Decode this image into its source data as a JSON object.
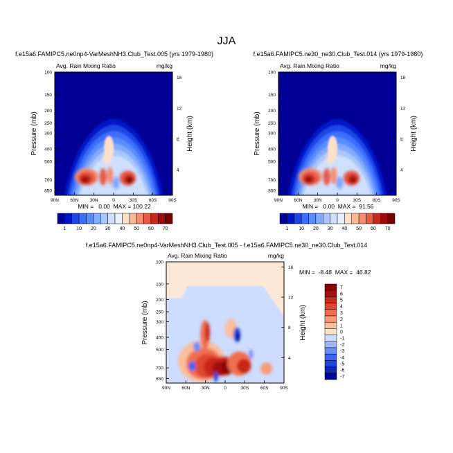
{
  "figure_title": "JJA",
  "colors": {
    "background_field": "#fde8d8",
    "full_scale": [
      "#000096",
      "#0015c8",
      "#1e46e6",
      "#3c6eff",
      "#5a8cff",
      "#82aaff",
      "#aac8ff",
      "#cfe0ff",
      "#e8f0ff",
      "#fde0c8",
      "#fbb896",
      "#f58c6e",
      "#e65a46",
      "#c8281e",
      "#a00a0a",
      "#780000"
    ],
    "diff_scale": [
      "#000096",
      "#0a28b4",
      "#1e46dc",
      "#3c64f0",
      "#6e8cf5",
      "#a0b4fa",
      "#cddcff",
      "#fde0c8",
      "#fbbe9c",
      "#f89b78",
      "#f06e50",
      "#e0462d",
      "#c82814",
      "#a50f0a",
      "#8c0000"
    ]
  },
  "chart_data": [
    {
      "type": "heatmap",
      "panel": "top-left",
      "title": "f.e15a6.FAMIPC5.ne0np4-VarMeshNH3.Club_Test.005 (yrs 1979-1980)",
      "variable": "Avg. Rain Mixing Ratio",
      "units": "mg/kg",
      "ylabel": "Pressure (mb)",
      "ylabel_right": "Height (km)",
      "x_ticks": [
        "90N",
        "60N",
        "30N",
        "0",
        "30S",
        "60S",
        "90S"
      ],
      "y_ticks": [
        "100",
        "150",
        "200",
        "250",
        "300",
        "400",
        "500",
        "700",
        "850"
      ],
      "y_ticks_right": [
        "16",
        "12",
        "8",
        "4"
      ],
      "stats": "MIN =   0.00  MAX = 100.22",
      "min": 0.0,
      "max": 100.22,
      "colorbar_labels": [
        "1",
        "10",
        "20",
        "30",
        "40",
        "50",
        "60",
        "70"
      ]
    },
    {
      "type": "heatmap",
      "panel": "top-right",
      "title": "f.e15a6.FAMIPC5.ne30_ne30.Club_Test.014 (yrs 1979-1980)",
      "variable": "Avg. Rain Mixing Ratio",
      "units": "mg/kg",
      "ylabel": "Pressure (mb)",
      "ylabel_right": "Height (km)",
      "x_ticks": [
        "90N",
        "60N",
        "30N",
        "0",
        "30S",
        "60S",
        "90S"
      ],
      "y_ticks": [
        "100",
        "150",
        "200",
        "250",
        "300",
        "400",
        "500",
        "700",
        "850"
      ],
      "y_ticks_right": [
        "16",
        "12",
        "8",
        "4"
      ],
      "stats": "MIN =   0.00  MAX =  91.56",
      "min": 0.0,
      "max": 91.56,
      "colorbar_labels": [
        "1",
        "10",
        "20",
        "30",
        "40",
        "50",
        "60",
        "70"
      ]
    },
    {
      "type": "heatmap",
      "panel": "bottom-center",
      "title": "f.e15a6.FAMIPC5.ne0np4-VarMeshNH3.Club_Test.005 - f.e15a6.FAMIPC5.ne30_ne30.Club_Test.014",
      "variable": "Avg. Rain Mixing Ratio",
      "units": "mg/kg",
      "ylabel": "Pressure (mb)",
      "ylabel_right": "Height (km)",
      "x_ticks": [
        "90N",
        "60N",
        "30N",
        "0",
        "30S",
        "60S",
        "90S"
      ],
      "y_ticks": [
        "100",
        "150",
        "200",
        "250",
        "300",
        "400",
        "500",
        "700",
        "850"
      ],
      "y_ticks_right": [
        "16",
        "12",
        "8",
        "4"
      ],
      "stats": "MIN =  -8.48  MAX =  46.82",
      "min": -8.48,
      "max": 46.82,
      "colorbar_labels": [
        "7",
        "6",
        "5",
        "4",
        "3",
        "2",
        "1",
        "0",
        "-1",
        "-2",
        "-3",
        "-4",
        "-5",
        "-6",
        "-7"
      ]
    }
  ]
}
